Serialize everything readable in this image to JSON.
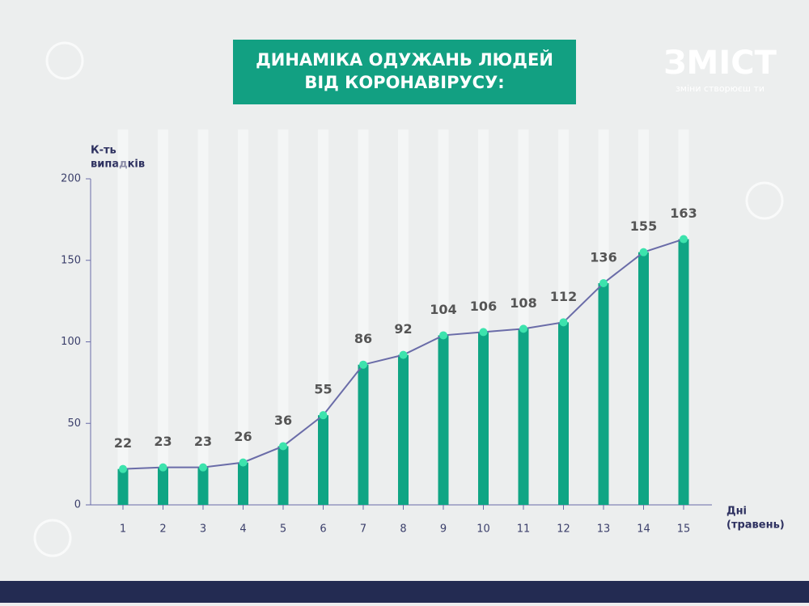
{
  "logo": {
    "name": "ЗМІСТ",
    "tagline": "зміни створюєш ти"
  },
  "chart_data": {
    "type": "bar",
    "title": [
      "ДИНАМІКА ОДУЖАНЬ ЛЮДЕЙ",
      "ВІД КОРОНАВІРУСУ:"
    ],
    "y_label": [
      "К-ть",
      "випадків"
    ],
    "x_label": [
      "Дні",
      "(травень)"
    ],
    "categories": [
      "1",
      "2",
      "3",
      "4",
      "5",
      "6",
      "7",
      "8",
      "9",
      "10",
      "11",
      "12",
      "13",
      "14",
      "15"
    ],
    "values": [
      22,
      23,
      23,
      26,
      36,
      55,
      86,
      92,
      104,
      106,
      108,
      112,
      136,
      155,
      163
    ],
    "color": "#0fa584",
    "line_color": "#6a6ca8",
    "marker_color": "#3de3ad",
    "ylim": [
      0,
      200
    ],
    "yticks": [
      0,
      50,
      100,
      150,
      200
    ]
  }
}
